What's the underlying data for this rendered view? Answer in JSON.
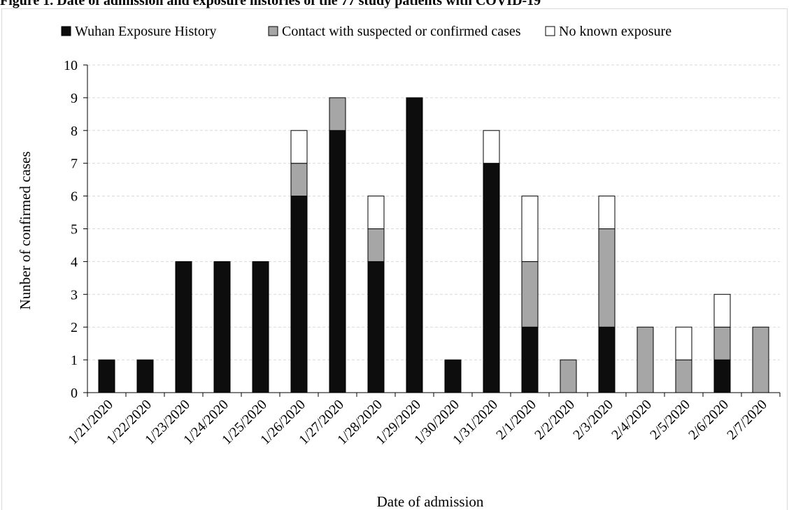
{
  "figure": {
    "title": "Figure 1. Date of admission and exposure histories of the 77 study patients with COVID-19"
  },
  "chart_data": {
    "type": "bar",
    "stacked": true,
    "title": "Figure 1. Date of admission and exposure histories of the 77 study patients with COVID-19",
    "xlabel": "Date of admission",
    "ylabel": "Nunber of confirmed cases",
    "ylim": [
      0,
      10
    ],
    "yticks": [
      0,
      1,
      2,
      3,
      4,
      5,
      6,
      7,
      8,
      9,
      10
    ],
    "grid": "horizontal dashed",
    "legend_position": "top",
    "categories": [
      "1/21/2020",
      "1/22/2020",
      "1/23/2020",
      "1/24/2020",
      "1/25/2020",
      "1/26/2020",
      "1/27/2020",
      "1/28/2020",
      "1/29/2020",
      "1/30/2020",
      "1/31/2020",
      "2/1/2020",
      "2/2/2020",
      "2/3/2020",
      "2/4/2020",
      "2/5/2020",
      "2/6/2020",
      "2/7/2020"
    ],
    "series": [
      {
        "name": "Wuhan Exposure History",
        "color": "#0d0d0d",
        "values": [
          1,
          1,
          4,
          4,
          4,
          6,
          8,
          4,
          9,
          1,
          7,
          2,
          0,
          2,
          0,
          0,
          1,
          0
        ]
      },
      {
        "name": "Contact with suspected or confirmed cases",
        "color": "#a6a6a6",
        "values": [
          0,
          0,
          0,
          0,
          0,
          1,
          1,
          1,
          0,
          0,
          0,
          2,
          1,
          3,
          2,
          1,
          1,
          2
        ]
      },
      {
        "name": "No known exposure",
        "color": "#ffffff",
        "values": [
          0,
          0,
          0,
          0,
          0,
          1,
          0,
          1,
          0,
          0,
          1,
          2,
          0,
          1,
          0,
          1,
          1,
          0
        ]
      }
    ]
  }
}
